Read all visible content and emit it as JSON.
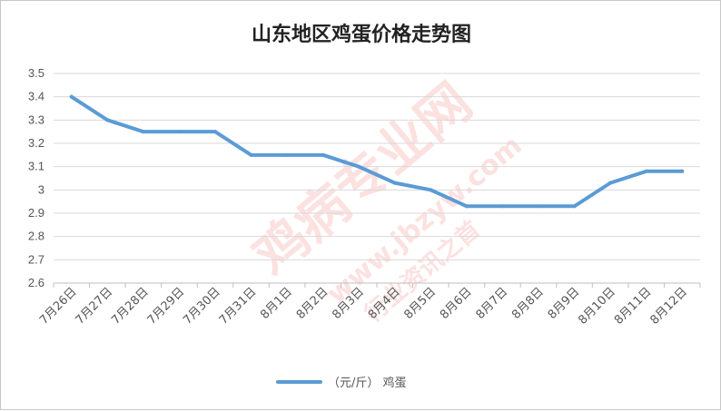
{
  "chart_data": {
    "type": "line",
    "title": "山东地区鸡蛋价格走势图",
    "categories": [
      "7月26日",
      "7月27日",
      "7月28日",
      "7月29日",
      "7月30日",
      "7月31日",
      "8月1日",
      "8月2日",
      "8月3日",
      "8月4日",
      "8月5日",
      "8月6日",
      "8月7日",
      "8月8日",
      "8月9日",
      "8月10日",
      "8月11日",
      "8月12日"
    ],
    "series": [
      {
        "name": "（元/斤）  鸡蛋",
        "values": [
          3.4,
          3.3,
          3.25,
          3.25,
          3.25,
          3.15,
          3.15,
          3.15,
          3.1,
          3.03,
          3.0,
          2.93,
          2.93,
          2.93,
          2.93,
          3.03,
          3.08,
          3.08
        ]
      }
    ],
    "ylim": [
      2.6,
      3.5
    ],
    "yticks": [
      2.6,
      2.7,
      2.8,
      2.9,
      3,
      3.1,
      3.2,
      3.3,
      3.4,
      3.5
    ],
    "xlabel": "",
    "ylabel": "",
    "grid": true,
    "legend": "bottom",
    "line_color": "#5b9bd5",
    "grid_color": "#d9d9d9"
  },
  "watermark": {
    "main": "鸡病专业网",
    "url": "www.jbzyw.com",
    "sub": "行业资讯之首"
  }
}
